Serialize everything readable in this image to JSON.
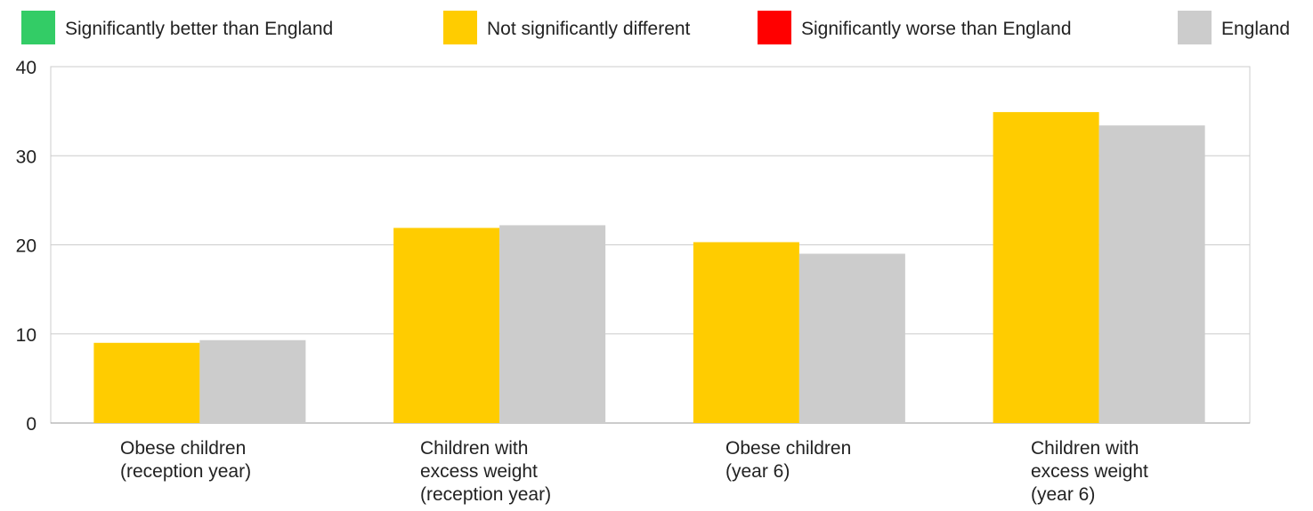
{
  "legend": [
    {
      "label": "Significantly better than England",
      "color": "#33cc66"
    },
    {
      "label": "Not significantly different",
      "color": "#ffcc00"
    },
    {
      "label": "Significantly worse than England",
      "color": "#ff0000"
    },
    {
      "label": "England",
      "color": "#cccccc"
    }
  ],
  "chart_data": {
    "type": "bar",
    "title": "",
    "xlabel": "",
    "ylabel": "",
    "ylim": [
      0,
      40
    ],
    "yticks": [
      0,
      10,
      20,
      30,
      40
    ],
    "grid": true,
    "legend_position": "top",
    "categories": [
      [
        "Obese children",
        "(reception year)"
      ],
      [
        "Children with",
        "excess weight",
        "(reception year)"
      ],
      [
        "Obese children",
        "(year 6)"
      ],
      [
        "Children with",
        "excess weight",
        "(year 6)"
      ]
    ],
    "series": [
      {
        "values": [
          9.0,
          21.9,
          20.3,
          34.9
        ],
        "color": "#ffcc00"
      },
      {
        "name": "England",
        "values": [
          9.3,
          22.2,
          19.0,
          33.4
        ],
        "color": "#cccccc"
      }
    ]
  }
}
